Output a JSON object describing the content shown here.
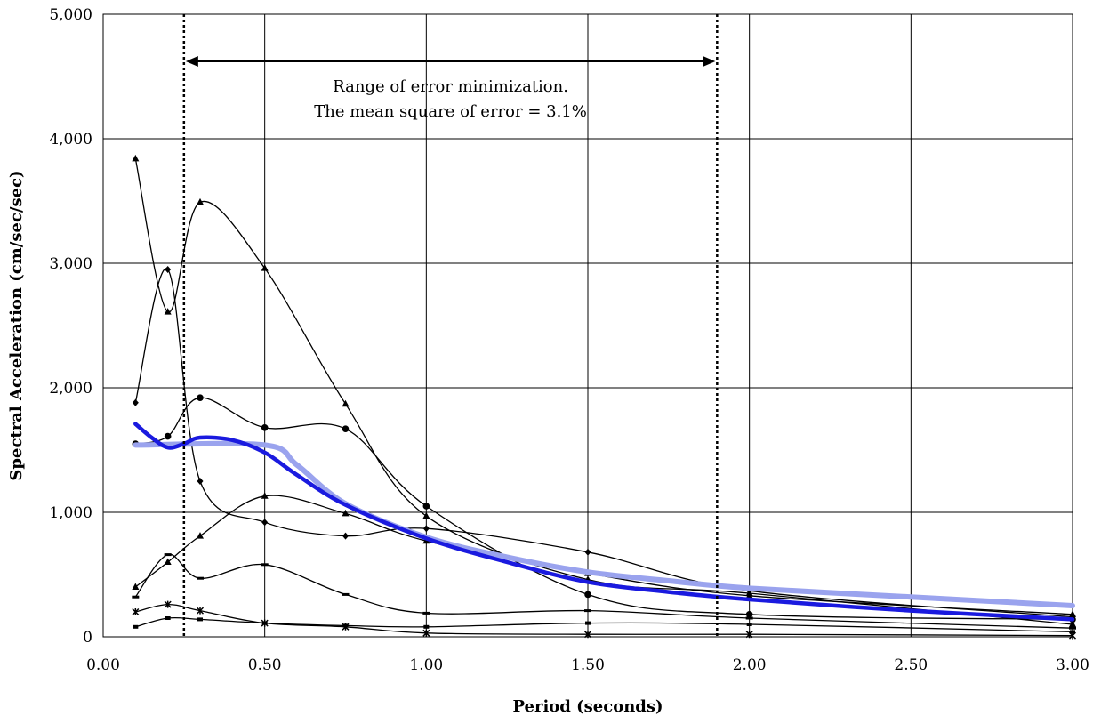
{
  "chart_data": {
    "type": "line",
    "title": "",
    "xlabel": "Period (seconds)",
    "ylabel": "Spectral Acceleration (cm/sec/sec)",
    "xlim": [
      0,
      3
    ],
    "ylim": [
      0,
      5000
    ],
    "xticks": [
      0,
      0.5,
      1.0,
      1.5,
      2.0,
      2.5,
      3.0
    ],
    "xtick_labels": [
      "0.00",
      "0.50",
      "1.00",
      "1.50",
      "2.00",
      "2.50",
      "3.00"
    ],
    "yticks": [
      0,
      1000,
      2000,
      3000,
      4000,
      5000
    ],
    "ytick_labels": [
      "0",
      "1,000",
      "2,000",
      "3,000",
      "4,000",
      "5,000"
    ],
    "grid": true,
    "legend": "none",
    "annotation": {
      "lines": [
        "Range of error minimization.",
        "The mean square of error = 3.1%"
      ],
      "range": [
        0.25,
        1.9
      ]
    },
    "series": [
      {
        "marker": "triangle",
        "color": "#000000",
        "width": 1.3,
        "points": [
          [
            0.1,
            3840
          ],
          [
            0.2,
            2610
          ],
          [
            0.3,
            3490
          ],
          [
            0.5,
            2960
          ],
          [
            0.75,
            1870
          ],
          [
            1.0,
            970
          ],
          [
            1.5,
            460
          ],
          [
            2.0,
            350
          ],
          [
            3.0,
            100
          ]
        ]
      },
      {
        "marker": "diamond",
        "color": "#000000",
        "width": 1.3,
        "points": [
          [
            0.1,
            1880
          ],
          [
            0.2,
            2950
          ],
          [
            0.3,
            1250
          ],
          [
            0.5,
            920
          ],
          [
            0.75,
            810
          ],
          [
            1.0,
            870
          ],
          [
            1.5,
            680
          ],
          [
            2.0,
            370
          ],
          [
            3.0,
            160
          ]
        ]
      },
      {
        "marker": "circle",
        "color": "#000000",
        "width": 1.3,
        "points": [
          [
            0.1,
            1550
          ],
          [
            0.2,
            1610
          ],
          [
            0.3,
            1920
          ],
          [
            0.5,
            1680
          ],
          [
            0.75,
            1670
          ],
          [
            1.0,
            1050
          ],
          [
            1.5,
            340
          ],
          [
            2.0,
            180
          ],
          [
            3.0,
            140
          ]
        ]
      },
      {
        "marker": "triangle",
        "color": "#000000",
        "width": 1.3,
        "points": [
          [
            0.1,
            400
          ],
          [
            0.2,
            600
          ],
          [
            0.3,
            810
          ],
          [
            0.5,
            1130
          ],
          [
            0.75,
            990
          ],
          [
            1.0,
            770
          ],
          [
            1.5,
            510
          ],
          [
            2.0,
            330
          ],
          [
            3.0,
            180
          ]
        ]
      },
      {
        "marker": "dash",
        "color": "#000000",
        "width": 1.3,
        "points": [
          [
            0.1,
            320
          ],
          [
            0.2,
            660
          ],
          [
            0.3,
            470
          ],
          [
            0.5,
            580
          ],
          [
            0.75,
            340
          ],
          [
            1.0,
            190
          ],
          [
            1.5,
            210
          ],
          [
            2.0,
            150
          ],
          [
            3.0,
            70
          ]
        ]
      },
      {
        "marker": "star",
        "color": "#000000",
        "width": 1.3,
        "points": [
          [
            0.1,
            200
          ],
          [
            0.2,
            260
          ],
          [
            0.3,
            210
          ],
          [
            0.5,
            110
          ],
          [
            0.75,
            80
          ],
          [
            1.0,
            30
          ],
          [
            1.5,
            20
          ],
          [
            2.0,
            20
          ],
          [
            3.0,
            10
          ]
        ]
      },
      {
        "marker": "square",
        "color": "#000000",
        "width": 1.3,
        "points": [
          [
            0.1,
            80
          ],
          [
            0.2,
            150
          ],
          [
            0.3,
            140
          ],
          [
            0.5,
            110
          ],
          [
            0.75,
            90
          ],
          [
            1.0,
            80
          ],
          [
            1.5,
            110
          ],
          [
            2.0,
            100
          ],
          [
            3.0,
            40
          ]
        ]
      },
      {
        "marker": "none",
        "color": "#9aa3ee",
        "width": 6,
        "points": [
          [
            0.1,
            1540
          ],
          [
            0.5,
            1540
          ],
          [
            0.6,
            1380
          ],
          [
            0.75,
            1070
          ],
          [
            1.0,
            800
          ],
          [
            1.25,
            640
          ],
          [
            1.5,
            520
          ],
          [
            1.75,
            450
          ],
          [
            2.0,
            390
          ],
          [
            2.5,
            320
          ],
          [
            3.0,
            250
          ]
        ]
      },
      {
        "marker": "none",
        "color": "#1a1adf",
        "width": 4.5,
        "points": [
          [
            0.1,
            1710
          ],
          [
            0.15,
            1600
          ],
          [
            0.2,
            1520
          ],
          [
            0.25,
            1550
          ],
          [
            0.3,
            1600
          ],
          [
            0.4,
            1580
          ],
          [
            0.5,
            1480
          ],
          [
            0.6,
            1300
          ],
          [
            0.75,
            1060
          ],
          [
            1.0,
            790
          ],
          [
            1.25,
            600
          ],
          [
            1.5,
            440
          ],
          [
            1.75,
            360
          ],
          [
            2.0,
            300
          ],
          [
            2.5,
            210
          ],
          [
            3.0,
            140
          ]
        ]
      }
    ]
  }
}
